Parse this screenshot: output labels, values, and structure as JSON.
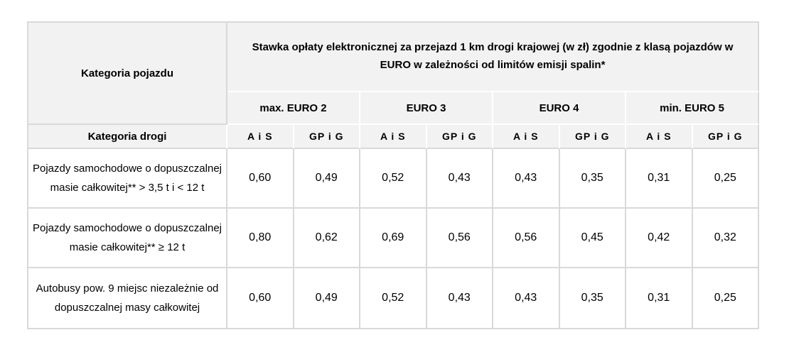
{
  "table": {
    "corner_header": "Kategoria pojazdu",
    "main_header": "Stawka opłaty elektronicznej za przejazd 1 km drogi krajowej (w zł) zgodnie z klasą pojazdów w EURO w zależności od limitów emisji spalin*",
    "road_category_header": "Kategoria drogi",
    "euro_classes": [
      "max. EURO 2",
      "EURO 3",
      "EURO 4",
      "min. EURO 5"
    ],
    "road_types": [
      "A i S",
      "GP i G",
      "A i S",
      "GP i G",
      "A i S",
      "GP i G",
      "A i S",
      "GP i G"
    ],
    "rows": [
      {
        "category": "Pojazdy samochodowe o dopuszczalnej masie całkowitej** > 3,5 t i < 12 t",
        "values": [
          "0,60",
          "0,49",
          "0,52",
          "0,43",
          "0,43",
          "0,35",
          "0,31",
          "0,25"
        ]
      },
      {
        "category": "Pojazdy samochodowe o dopuszczalnej masie całkowitej** ≥ 12 t",
        "values": [
          "0,80",
          "0,62",
          "0,69",
          "0,56",
          "0,56",
          "0,45",
          "0,42",
          "0,32"
        ]
      },
      {
        "category": "Autobusy pow. 9 miejsc niezależnie od dopuszczalnej masy całkowitej",
        "values": [
          "0,60",
          "0,49",
          "0,52",
          "0,43",
          "0,43",
          "0,35",
          "0,31",
          "0,25"
        ]
      }
    ],
    "colors": {
      "header_bg": "#f2f2f2",
      "border": "#d9d9d9",
      "text": "#000000",
      "background": "#ffffff"
    }
  }
}
